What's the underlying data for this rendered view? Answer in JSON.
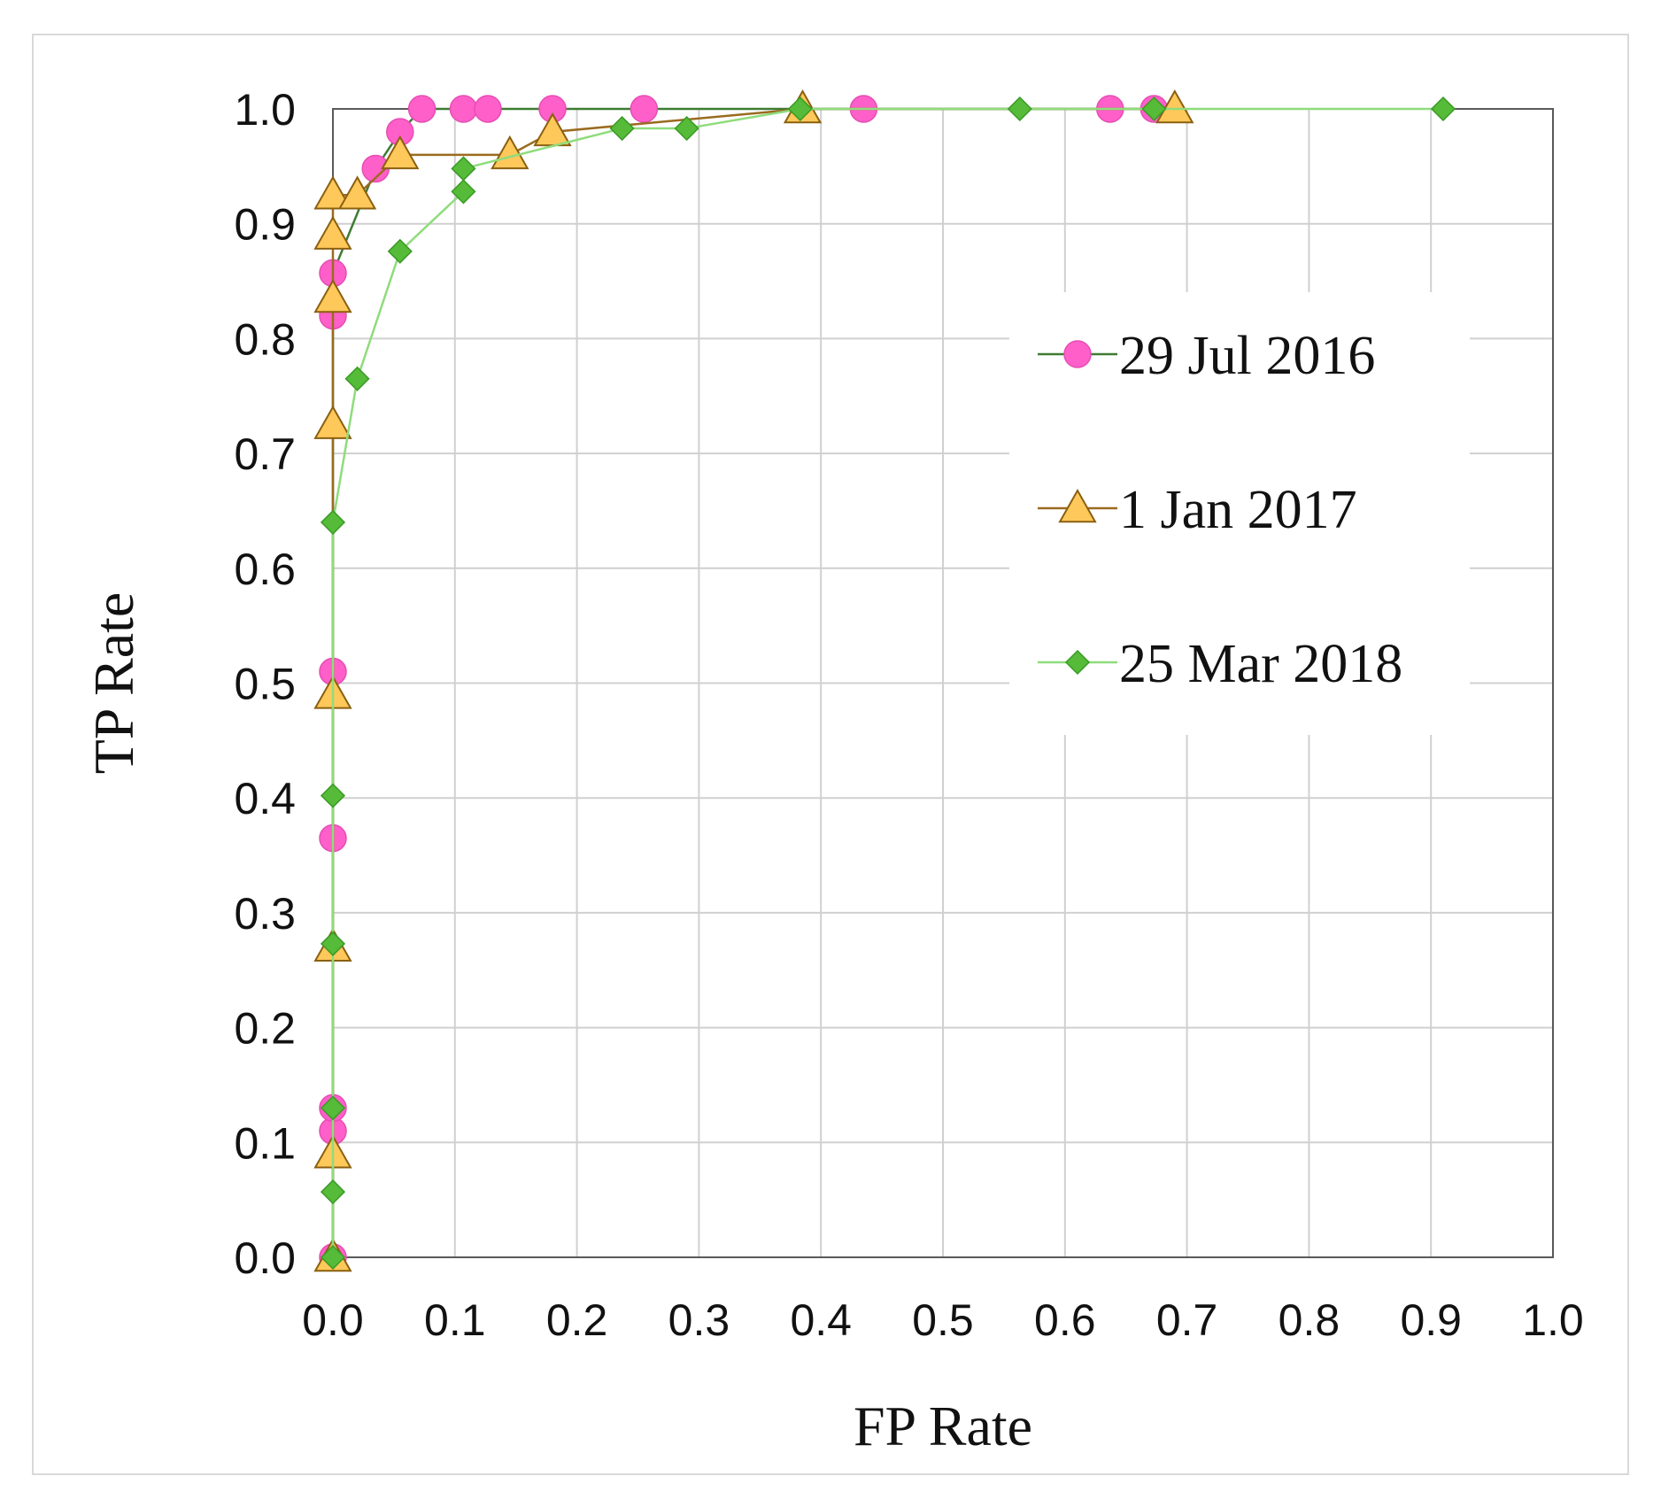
{
  "chart_data": {
    "type": "scatter",
    "title": "",
    "xlabel": "FP Rate",
    "ylabel": "TP Rate",
    "xlim": [
      0,
      1
    ],
    "ylim": [
      0,
      1
    ],
    "grid": true,
    "legend_position": "right",
    "x_ticks": [
      "0.0",
      "0.1",
      "0.2",
      "0.3",
      "0.4",
      "0.5",
      "0.6",
      "0.7",
      "0.8",
      "0.9",
      "1.0"
    ],
    "y_ticks": [
      "0.0",
      "0.1",
      "0.2",
      "0.3",
      "0.4",
      "0.5",
      "0.6",
      "0.7",
      "0.8",
      "0.9",
      "1.0"
    ],
    "series": [
      {
        "name": "29 Jul 2016",
        "marker": "circle",
        "marker_color": "#ff5fc8",
        "line_color": "#3e7b32",
        "points": [
          [
            0.0,
            0.0
          ],
          [
            0.0,
            0.11
          ],
          [
            0.0,
            0.13
          ],
          [
            0.0,
            0.365
          ],
          [
            0.0,
            0.51
          ],
          [
            0.0,
            0.82
          ],
          [
            0.0,
            0.857
          ],
          [
            0.035,
            0.948
          ],
          [
            0.055,
            0.98
          ],
          [
            0.073,
            1.0
          ],
          [
            0.107,
            1.0
          ],
          [
            0.127,
            1.0
          ],
          [
            0.18,
            1.0
          ],
          [
            0.255,
            1.0
          ],
          [
            0.435,
            1.0
          ],
          [
            0.637,
            1.0
          ],
          [
            0.673,
            1.0
          ]
        ]
      },
      {
        "name": "1 Jan 2017",
        "marker": "triangle",
        "marker_color": "#ffc85a",
        "line_color": "#9a6b1f",
        "points": [
          [
            0.0,
            0.0
          ],
          [
            0.0,
            0.09
          ],
          [
            0.0,
            0.27
          ],
          [
            0.0,
            0.49
          ],
          [
            0.0,
            0.725
          ],
          [
            0.0,
            0.835
          ],
          [
            0.0,
            0.89
          ],
          [
            0.0,
            0.925
          ],
          [
            0.02,
            0.925
          ],
          [
            0.055,
            0.96
          ],
          [
            0.145,
            0.96
          ],
          [
            0.18,
            0.98
          ],
          [
            0.385,
            1.0
          ],
          [
            0.69,
            1.0
          ]
        ]
      },
      {
        "name": "25 Mar 2018",
        "marker": "diamond",
        "marker_color": "#55bb38",
        "line_color": "#8fdc7c",
        "points": [
          [
            0.0,
            0.0
          ],
          [
            0.0,
            0.057
          ],
          [
            0.0,
            0.13
          ],
          [
            0.0,
            0.273
          ],
          [
            0.0,
            0.402
          ],
          [
            0.0,
            0.64
          ],
          [
            0.02,
            0.765
          ],
          [
            0.055,
            0.876
          ],
          [
            0.107,
            0.928
          ],
          [
            0.107,
            0.948
          ],
          [
            0.237,
            0.983
          ],
          [
            0.29,
            0.983
          ],
          [
            0.383,
            1.0
          ],
          [
            0.563,
            1.0
          ],
          [
            0.673,
            1.0
          ],
          [
            0.91,
            1.0
          ]
        ]
      }
    ]
  }
}
